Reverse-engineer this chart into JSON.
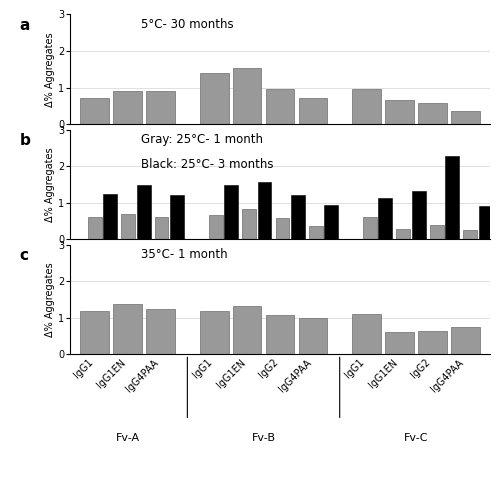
{
  "panel_a": {
    "title": "5°C- 30 months",
    "values": [
      0.7,
      0.9,
      0.9,
      1.4,
      1.52,
      0.95,
      0.7,
      0.95,
      0.65,
      0.58,
      0.35
    ],
    "bar_color": "#999999"
  },
  "panel_b": {
    "title_line1": "Gray: 25°C- 1 month",
    "title_line2": "Black: 25°C- 3 months",
    "gray_values": [
      0.6,
      0.7,
      0.6,
      0.65,
      0.83,
      0.57,
      0.35,
      0.6,
      0.28,
      0.38,
      0.25
    ],
    "black_values": [
      1.25,
      1.48,
      1.2,
      1.48,
      1.57,
      1.22,
      0.93,
      1.13,
      1.32,
      2.28,
      0.9
    ],
    "gray_color": "#999999",
    "black_color": "#000000"
  },
  "panel_c": {
    "title": "35°C- 1 month",
    "values": [
      1.18,
      1.38,
      1.25,
      1.2,
      1.33,
      1.07,
      1.0,
      1.1,
      0.62,
      0.65,
      0.75
    ],
    "bar_color": "#999999"
  },
  "group_sizes": [
    3,
    4,
    4
  ],
  "group_names": [
    "Fv-A",
    "Fv-B",
    "Fv-C"
  ],
  "all_labels": [
    "IgG1",
    "IgG1EN",
    "IgG4PAA",
    "IgG1",
    "IgG1EN",
    "IgG2",
    "IgG4PAA",
    "IgG1",
    "IgG1EN",
    "IgG2",
    "IgG4PAA"
  ],
  "ylim": [
    0,
    3
  ],
  "yticks": [
    0,
    1,
    2,
    3
  ],
  "ylabel": "Δ% Aggregates",
  "background_color": "#ffffff",
  "panel_labels": [
    "a",
    "b",
    "c"
  ]
}
